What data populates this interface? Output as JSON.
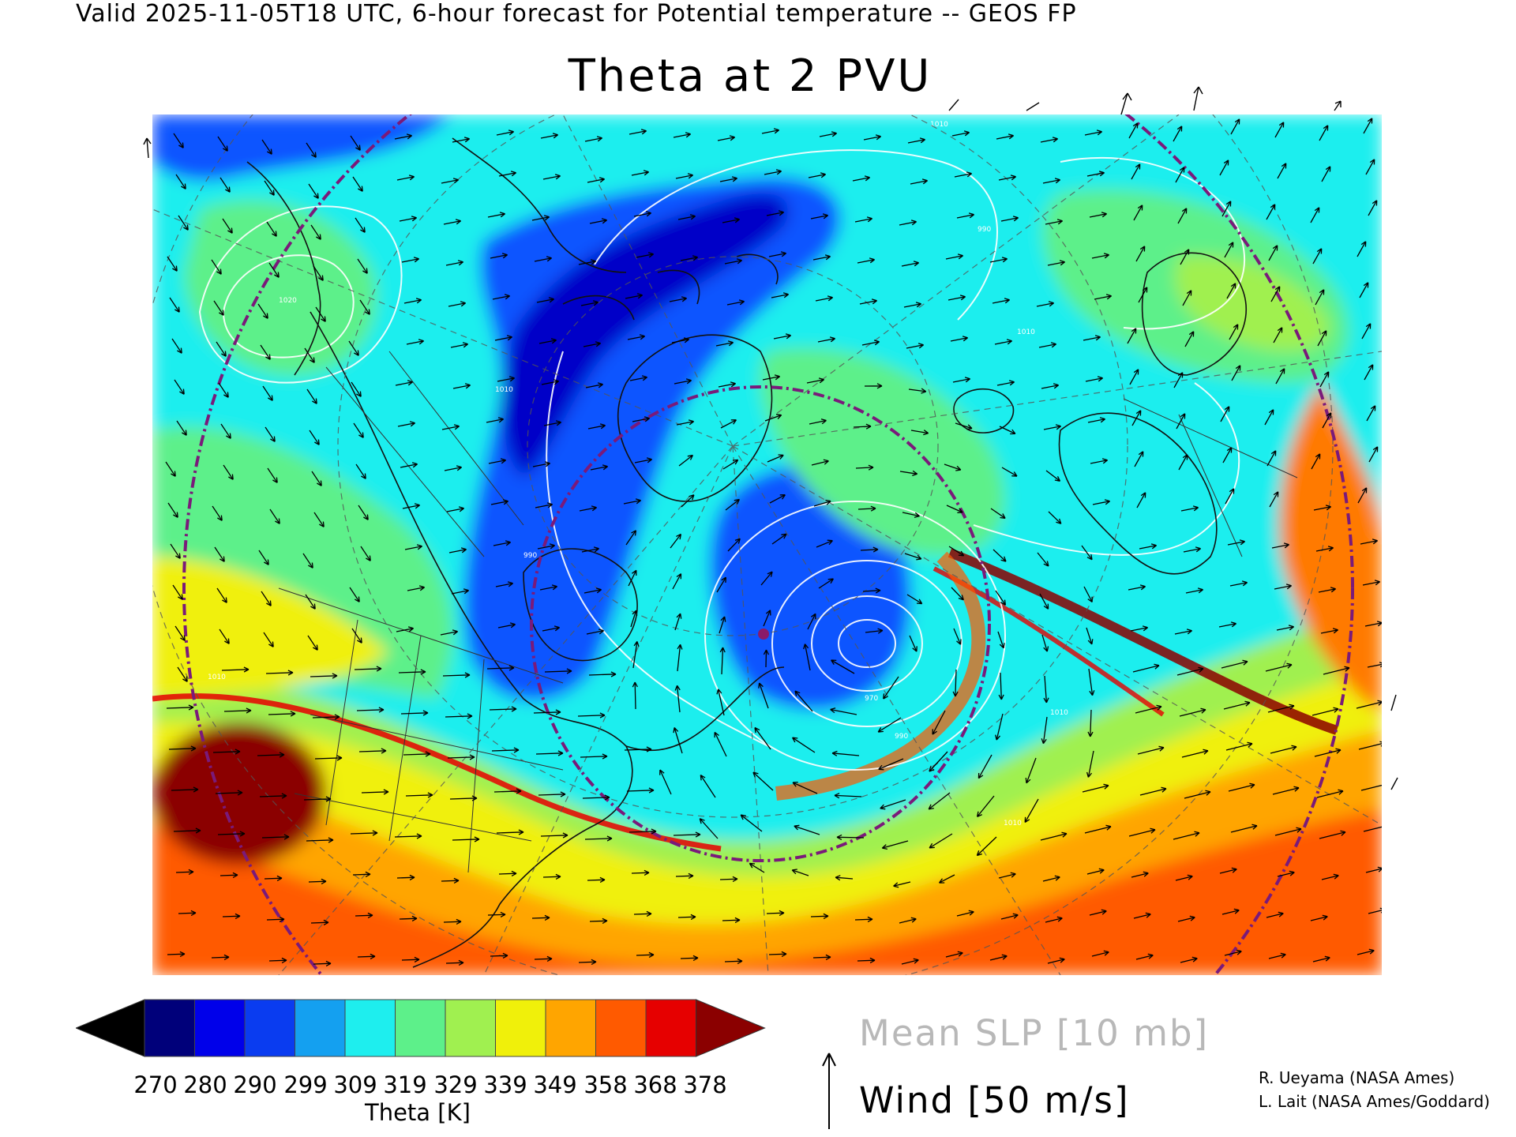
{
  "header": "Valid 2025-11-05T18 UTC, 6-hour forecast for Potential temperature -- GEOS FP",
  "title": "Theta at 2 PVU",
  "map": {
    "contour_labels": [
      "1010",
      "1020",
      "1010",
      "990",
      "990",
      "970",
      "990",
      "1010",
      "1010",
      "1010",
      "1010"
    ],
    "colors": {
      "deep_blue": "#0000c8",
      "blue": "#0a55ff",
      "cyan": "#1eeeee",
      "green": "#5df08a",
      "yellow": "#f0f00a",
      "orange": "#ff5a00",
      "dark_red": "#8b0000",
      "circle_purple": "#7a1a7a"
    }
  },
  "colorbar": {
    "label": "Theta [K]",
    "ticks": [
      "270",
      "280",
      "290",
      "299",
      "309",
      "319",
      "329",
      "339",
      "349",
      "358",
      "368",
      "378"
    ],
    "colors": [
      "#000000",
      "#00007a",
      "#0000ea",
      "#0a3cf0",
      "#14a0f0",
      "#1eeeee",
      "#5df08a",
      "#a0f050",
      "#f0f00a",
      "#ffa500",
      "#ff5a00",
      "#e60000",
      "#8b0000"
    ]
  },
  "legend": {
    "slp": "Mean SLP [10 mb]",
    "wind": "Wind [50 m/s]"
  },
  "credits": {
    "line1": "R. Ueyama (NASA Ames)",
    "line2": "L. Lait (NASA Ames/Goddard)"
  }
}
